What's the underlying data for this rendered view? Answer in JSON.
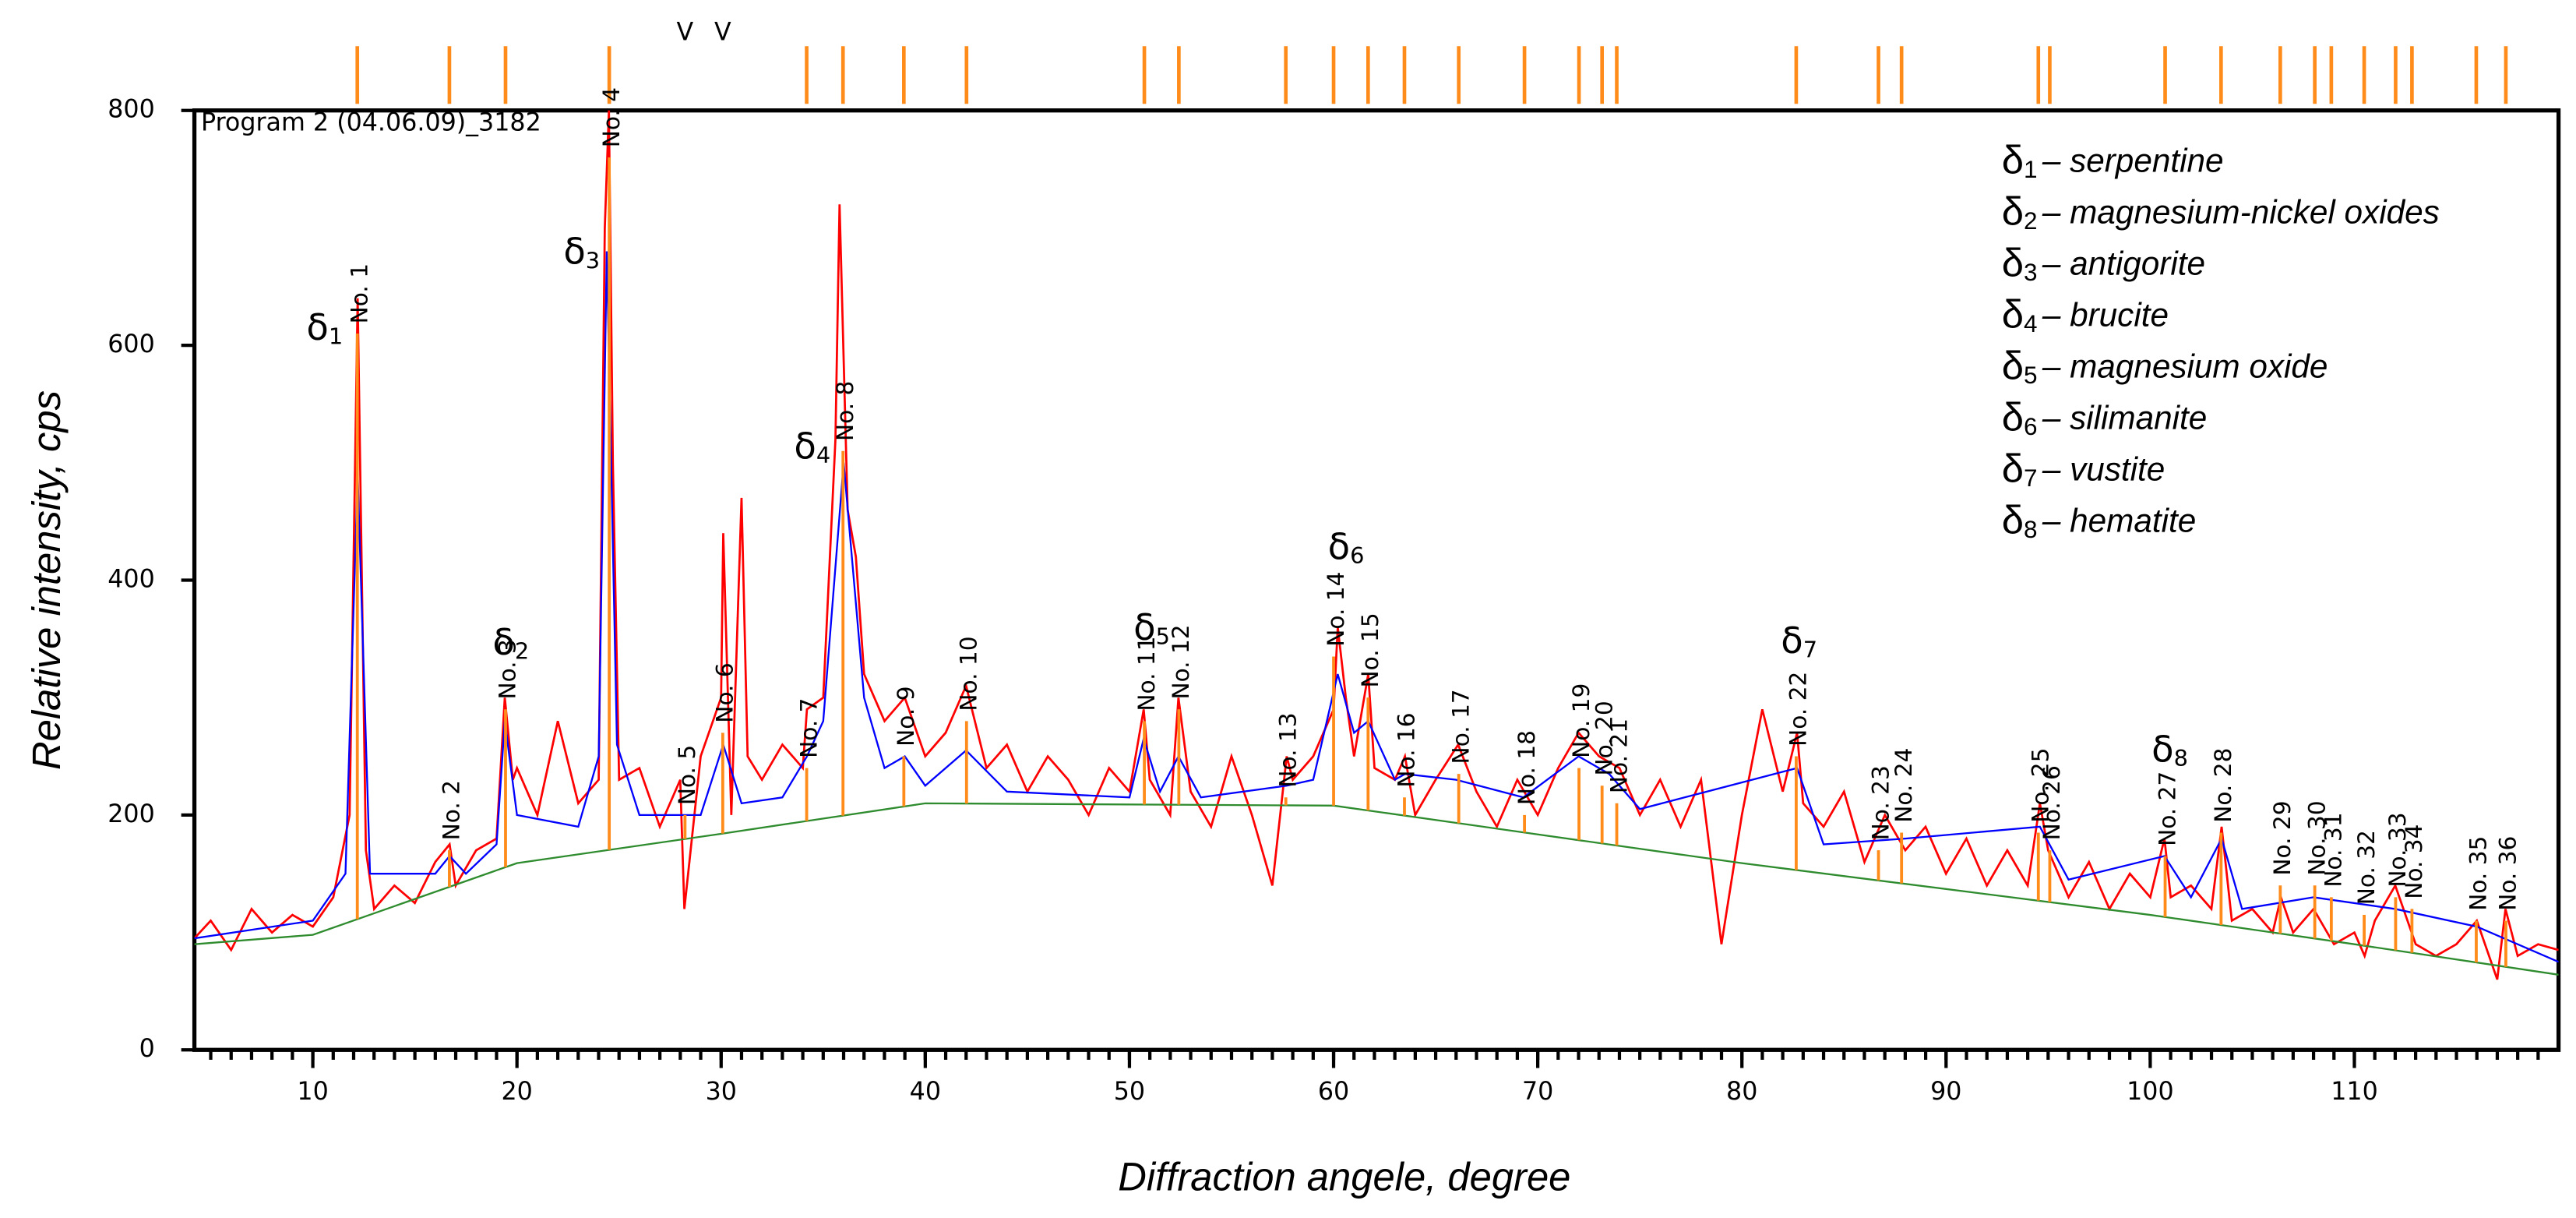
{
  "chart_data": {
    "type": "line",
    "title": "Program 2 (04.06.09)_3182",
    "x_label": "Diffraction angele, degree",
    "y_label": "Relative intensity, cps",
    "xlim": [
      4.2,
      120
    ],
    "ylim": [
      0,
      800
    ],
    "xticks": [
      10,
      20,
      30,
      40,
      50,
      60,
      70,
      80,
      90,
      100,
      110
    ],
    "xminorticks": [
      5,
      6,
      7,
      8,
      9,
      10,
      11,
      12,
      13,
      14,
      15,
      16,
      17,
      18,
      19,
      20,
      21,
      22,
      23,
      24,
      25,
      26,
      27,
      28,
      29,
      30,
      31,
      32,
      33,
      34,
      35,
      36,
      37,
      38,
      39,
      40,
      41,
      42,
      43,
      44,
      45,
      46,
      47,
      48,
      49,
      50,
      51,
      52,
      53,
      54,
      55,
      56,
      57,
      58,
      59,
      60,
      61,
      62,
      63,
      64,
      65,
      66,
      67,
      68,
      69,
      70,
      71,
      72,
      73,
      74,
      75,
      76,
      77,
      78,
      79,
      80,
      81,
      82,
      83,
      84,
      85,
      86,
      87,
      88,
      89,
      90,
      91,
      92,
      93,
      94,
      95,
      96,
      97,
      98,
      99,
      100,
      101,
      102,
      103,
      104,
      105,
      106,
      107,
      108,
      109,
      110,
      111,
      112,
      113,
      114,
      115,
      116,
      117,
      118,
      119
    ],
    "yticks": [
      0,
      200,
      400,
      600,
      800
    ],
    "series": [
      {
        "color": "#ff0000",
        "x": [
          4.2,
          5,
          6,
          7,
          8,
          9,
          10,
          11,
          11.8,
          12.2,
          12.6,
          13,
          14,
          15,
          16,
          16.7,
          17,
          18,
          19,
          19.4,
          19.8,
          20,
          21,
          22,
          23,
          24,
          24.3,
          24.5,
          24.7,
          25,
          26,
          27,
          28,
          28.2,
          29,
          30,
          30.1,
          30.5,
          31,
          31.3,
          32,
          33,
          34,
          34.2,
          35,
          35.6,
          35.8,
          36.2,
          36.6,
          37,
          38,
          39,
          40,
          41,
          42,
          43,
          44,
          45,
          46,
          47,
          48,
          49,
          50,
          50.7,
          51,
          52,
          52.4,
          53,
          54,
          55,
          56,
          57,
          57.7,
          58,
          59,
          60,
          60.2,
          60.6,
          61,
          61.7,
          62,
          63,
          63.5,
          64,
          65,
          66.1,
          67,
          68,
          69,
          70,
          71,
          72,
          73,
          74,
          75,
          76,
          77,
          78,
          79,
          80,
          81,
          82,
          82.7,
          83,
          84,
          85,
          86,
          87,
          88,
          89,
          90,
          91,
          92,
          93,
          94,
          94.6,
          95,
          96,
          97,
          98,
          99,
          100,
          100.7,
          101,
          102,
          103,
          103.5,
          104,
          105,
          106,
          106.4,
          107,
          108,
          109,
          110,
          110.5,
          111,
          112,
          113,
          114,
          115,
          116,
          117,
          117.4,
          118,
          119,
          120
        ],
        "values": [
          95,
          110,
          85,
          120,
          100,
          115,
          105,
          130,
          200,
          640,
          170,
          120,
          140,
          125,
          160,
          175,
          140,
          170,
          180,
          300,
          230,
          240,
          200,
          280,
          210,
          230,
          700,
          800,
          500,
          230,
          240,
          190,
          230,
          120,
          250,
          300,
          440,
          200,
          470,
          250,
          230,
          260,
          240,
          290,
          300,
          520,
          720,
          460,
          420,
          320,
          280,
          300,
          250,
          270,
          310,
          240,
          260,
          220,
          250,
          230,
          200,
          240,
          220,
          290,
          230,
          200,
          300,
          220,
          190,
          250,
          200,
          140,
          250,
          230,
          250,
          290,
          360,
          300,
          250,
          320,
          240,
          230,
          250,
          200,
          230,
          260,
          220,
          190,
          230,
          200,
          240,
          270,
          250,
          240,
          200,
          230,
          190,
          230,
          90,
          200,
          290,
          220,
          270,
          210,
          190,
          220,
          160,
          200,
          170,
          190,
          150,
          180,
          140,
          170,
          140,
          210,
          170,
          130,
          160,
          120,
          150,
          130,
          180,
          130,
          140,
          120,
          190,
          110,
          120,
          100,
          130,
          100,
          120,
          90,
          100,
          80,
          110,
          140,
          90,
          80,
          90,
          110,
          60,
          120,
          80,
          90,
          85
        ]
      },
      {
        "color": "#0000ff",
        "x": [
          4.2,
          10,
          11.6,
          12.2,
          12.8,
          16,
          16.7,
          17.5,
          19,
          19.4,
          20,
          23,
          24,
          24.4,
          24.9,
          26,
          29,
          30.1,
          31,
          33,
          34.2,
          35,
          36,
          37,
          38,
          39,
          40,
          42,
          44,
          50,
          50.7,
          51.5,
          52.4,
          53.5,
          57.7,
          59,
          60.2,
          61,
          61.7,
          63,
          63.5,
          66,
          69.3,
          72,
          73.5,
          75,
          82.7,
          84,
          88,
          94.6,
          96,
          100.7,
          102,
          103.5,
          104.5,
          108,
          112,
          116,
          120
        ],
        "values": [
          95,
          110,
          150,
          490,
          150,
          150,
          165,
          150,
          175,
          280,
          200,
          190,
          250,
          680,
          260,
          200,
          200,
          260,
          210,
          215,
          250,
          280,
          500,
          300,
          240,
          250,
          225,
          255,
          220,
          215,
          265,
          220,
          250,
          215,
          225,
          230,
          320,
          270,
          280,
          230,
          235,
          230,
          215,
          250,
          235,
          205,
          240,
          175,
          180,
          190,
          145,
          165,
          130,
          180,
          120,
          130,
          120,
          105,
          75
        ]
      },
      {
        "color": "#2e8b2e",
        "x": [
          4.2,
          10,
          20,
          30,
          40,
          60,
          80,
          100,
          110,
          120
        ],
        "values": [
          90,
          98,
          159,
          184,
          210,
          208,
          159,
          115,
          90,
          64
        ]
      }
    ],
    "peaks_color": "#ff8c1a",
    "peaks": [
      {
        "label": "No. 1",
        "x": 12.18,
        "intensity": 610
      },
      {
        "label": "No. 2",
        "x": 16.69,
        "intensity": 170
      },
      {
        "label": "No. 3",
        "x": 19.44,
        "intensity": 290
      },
      {
        "label": "No. 4",
        "x": 24.52,
        "intensity": 760
      },
      {
        "label": "No. 5",
        "x": 28.23,
        "intensity": 200,
        "top": "V"
      },
      {
        "label": "No. 6",
        "x": 30.08,
        "intensity": 270,
        "top": "V"
      },
      {
        "label": "No. 7",
        "x": 34.19,
        "intensity": 240
      },
      {
        "label": "No. 8",
        "x": 35.97,
        "intensity": 510
      },
      {
        "label": "No. 9",
        "x": 38.95,
        "intensity": 250
      },
      {
        "label": "No. 10",
        "x": 42.02,
        "intensity": 280
      },
      {
        "label": "No. 11",
        "x": 50.73,
        "intensity": 280
      },
      {
        "label": "No. 12",
        "x": 52.42,
        "intensity": 290
      },
      {
        "label": "No. 13",
        "x": 57.66,
        "intensity": 215
      },
      {
        "label": "No. 14",
        "x": 60.0,
        "intensity": 335
      },
      {
        "label": "No. 15",
        "x": 61.69,
        "intensity": 300
      },
      {
        "label": "No. 16",
        "x": 63.47,
        "intensity": 215
      },
      {
        "label": "No. 17",
        "x": 66.13,
        "intensity": 235
      },
      {
        "label": "No. 18",
        "x": 69.35,
        "intensity": 200
      },
      {
        "label": "No. 19",
        "x": 72.02,
        "intensity": 240
      },
      {
        "label": "No. 20",
        "x": 73.15,
        "intensity": 225
      },
      {
        "label": "No. 21",
        "x": 73.87,
        "intensity": 210
      },
      {
        "label": "No. 22",
        "x": 82.66,
        "intensity": 250
      },
      {
        "label": "No. 23",
        "x": 86.69,
        "intensity": 170
      },
      {
        "label": "No. 24",
        "x": 87.82,
        "intensity": 185
      },
      {
        "label": "No. 25",
        "x": 94.52,
        "intensity": 185
      },
      {
        "label": "No. 26",
        "x": 95.08,
        "intensity": 170
      },
      {
        "label": "No. 27",
        "x": 100.73,
        "intensity": 165
      },
      {
        "label": "No. 28",
        "x": 103.47,
        "intensity": 185
      },
      {
        "label": "No. 29",
        "x": 106.37,
        "intensity": 140
      },
      {
        "label": "No. 30",
        "x": 108.06,
        "intensity": 140
      },
      {
        "label": "No. 31",
        "x": 108.87,
        "intensity": 130
      },
      {
        "label": "No. 32",
        "x": 110.48,
        "intensity": 115
      },
      {
        "label": "No. 33",
        "x": 112.02,
        "intensity": 130
      },
      {
        "label": "No. 34",
        "x": 112.82,
        "intensity": 120
      },
      {
        "label": "No. 35",
        "x": 115.97,
        "intensity": 110
      },
      {
        "label": "No. 36",
        "x": 117.42,
        "intensity": 110
      }
    ],
    "legend": [
      {
        "symbol": "δ",
        "sub": "1",
        "text": "– serpentine"
      },
      {
        "symbol": "δ",
        "sub": "2",
        "text": "– magnesium-nickel oxides"
      },
      {
        "symbol": "δ",
        "sub": "3",
        "text": "– antigorite"
      },
      {
        "symbol": "δ",
        "sub": "4",
        "text": "– brucite"
      },
      {
        "symbol": "δ",
        "sub": "5",
        "text": "– magnesium oxide"
      },
      {
        "symbol": "δ",
        "sub": "6",
        "text": "– silimanite"
      },
      {
        "symbol": "δ",
        "sub": "7",
        "text": "– vustite"
      },
      {
        "symbol": "δ",
        "sub": "8",
        "text": "– hematite"
      }
    ]
  }
}
